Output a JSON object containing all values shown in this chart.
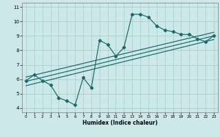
{
  "title": "",
  "xlabel": "Humidex (Indice chaleur)",
  "ylabel": "",
  "bg_color": "#cce8e8",
  "line_color": "#1a6b6b",
  "marker": "D",
  "markersize": 2.2,
  "linewidth": 0.9,
  "xlim": [
    -0.5,
    23.5
  ],
  "ylim": [
    3.7,
    11.3
  ],
  "xticks": [
    0,
    1,
    2,
    3,
    4,
    5,
    6,
    7,
    8,
    9,
    10,
    11,
    12,
    13,
    14,
    15,
    16,
    17,
    18,
    19,
    20,
    21,
    22,
    23
  ],
  "yticks": [
    4,
    5,
    6,
    7,
    8,
    9,
    10,
    11
  ],
  "grid_color": "#aad0d0",
  "series1_x": [
    0,
    1,
    2,
    3,
    4,
    5,
    6,
    7,
    8,
    9,
    10,
    11,
    12,
    13,
    14,
    15,
    16,
    17,
    18,
    19,
    20,
    21,
    22,
    23
  ],
  "series1_y": [
    5.9,
    6.3,
    5.9,
    5.6,
    4.7,
    4.5,
    4.2,
    6.1,
    5.4,
    8.7,
    8.4,
    7.6,
    8.2,
    10.5,
    10.5,
    10.3,
    9.7,
    9.4,
    9.3,
    9.1,
    9.1,
    8.8,
    8.6,
    9.0
  ],
  "series2_x": [
    0,
    23
  ],
  "series2_y": [
    5.85,
    9.0
  ],
  "series3_x": [
    0,
    23
  ],
  "series3_y": [
    6.15,
    9.25
  ],
  "series4_x": [
    0,
    23
  ],
  "series4_y": [
    5.55,
    8.75
  ]
}
